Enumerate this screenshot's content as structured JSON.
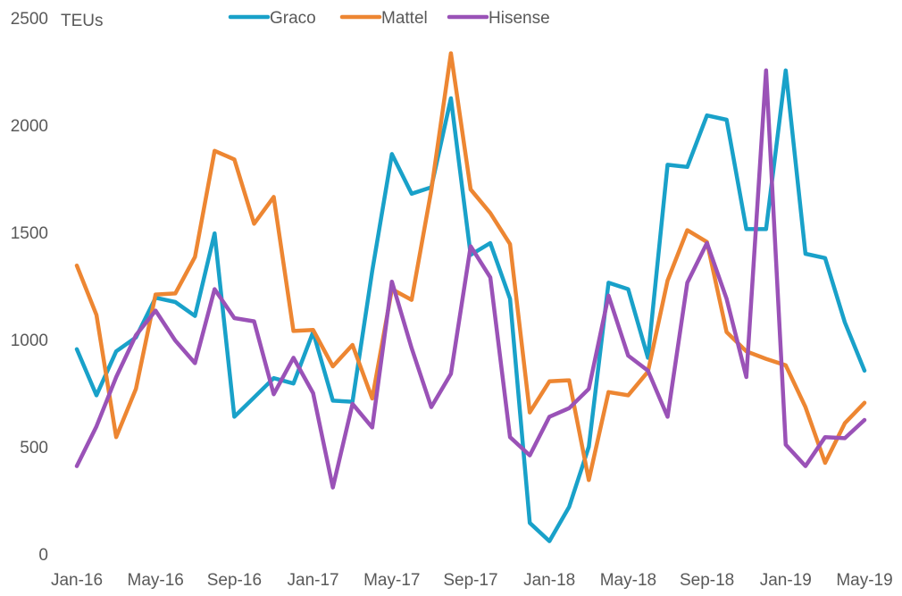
{
  "chart_data": {
    "type": "line",
    "title": "",
    "unit_label": "TEUs",
    "xlabel": "",
    "ylabel": "TEUs",
    "ylim": [
      0,
      2500
    ],
    "yticks": [
      "0",
      "500",
      "1000",
      "1500",
      "2000",
      "2500"
    ],
    "ytick_values": [
      0,
      500,
      1000,
      1500,
      2000,
      2500
    ],
    "grid": false,
    "legend_position": "top",
    "categories": [
      "Jan-16",
      "Feb-16",
      "Mar-16",
      "Apr-16",
      "May-16",
      "Jun-16",
      "Jul-16",
      "Aug-16",
      "Sep-16",
      "Oct-16",
      "Nov-16",
      "Dec-16",
      "Jan-17",
      "Feb-17",
      "Mar-17",
      "Apr-17",
      "May-17",
      "Jun-17",
      "Jul-17",
      "Aug-17",
      "Sep-17",
      "Oct-17",
      "Nov-17",
      "Dec-17",
      "Jan-18",
      "Feb-18",
      "Mar-18",
      "Apr-18",
      "May-18",
      "Jun-18",
      "Jul-18",
      "Aug-18",
      "Sep-18",
      "Oct-18",
      "Nov-18",
      "Dec-18",
      "Jan-19",
      "Feb-19",
      "Mar-19",
      "Apr-19",
      "May-19"
    ],
    "tick_labels": [
      "Jan-16",
      "May-16",
      "Sep-16",
      "Jan-17",
      "May-17",
      "Sep-17",
      "Jan-18",
      "May-18",
      "Sep-18",
      "Jan-19",
      "May-19"
    ],
    "tick_indices": [
      0,
      4,
      8,
      12,
      16,
      20,
      24,
      28,
      32,
      36,
      40
    ],
    "series": [
      {
        "name": "Graco",
        "color": "#19a1c9",
        "values": [
          955,
          740,
          945,
          1010,
          1195,
          1175,
          1110,
          1495,
          640,
          730,
          820,
          795,
          1035,
          715,
          710,
          1320,
          1865,
          1680,
          1710,
          2125,
          1395,
          1450,
          1190,
          145,
          60,
          220,
          500,
          1265,
          1235,
          915,
          1815,
          1805,
          2045,
          2025,
          1515,
          1515,
          2255,
          1400,
          1380,
          1080,
          855
        ]
      },
      {
        "name": "Mattel",
        "color": "#ed8632",
        "values": [
          1345,
          1115,
          545,
          770,
          1210,
          1215,
          1385,
          1880,
          1840,
          1540,
          1665,
          1040,
          1045,
          875,
          975,
          725,
          1235,
          1185,
          1695,
          2335,
          1700,
          1590,
          1445,
          660,
          805,
          810,
          345,
          755,
          740,
          850,
          1275,
          1510,
          1455,
          1035,
          945,
          910,
          880,
          685,
          425,
          610,
          705
        ]
      },
      {
        "name": "Hisense",
        "color": "#9a52b7",
        "values": [
          410,
          595,
          825,
          1020,
          1135,
          995,
          890,
          1235,
          1100,
          1085,
          745,
          915,
          750,
          310,
          700,
          590,
          1270,
          960,
          685,
          840,
          1435,
          1290,
          545,
          460,
          640,
          680,
          770,
          1205,
          925,
          855,
          640,
          1265,
          1450,
          1190,
          825,
          2255,
          510,
          410,
          545,
          540,
          625
        ]
      }
    ]
  }
}
